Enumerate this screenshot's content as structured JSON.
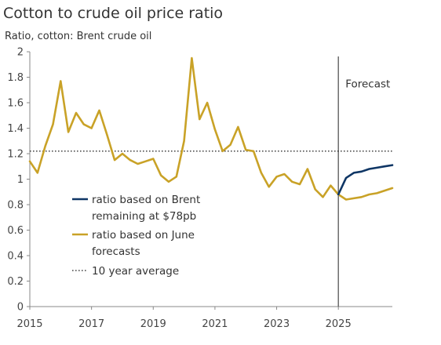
{
  "chart_data": {
    "type": "line",
    "title": "Cotton to crude oil price ratio",
    "subtitle": "Ratio, cotton: Brent crude oil",
    "ylim": [
      0,
      2
    ],
    "yticks": [
      0,
      0.2,
      0.4,
      0.6,
      0.8,
      1,
      1.2,
      1.4,
      1.6,
      1.8,
      2
    ],
    "ytick_labels": [
      "0",
      "0.2",
      "0.4",
      "0.6",
      "0.8",
      "1",
      "1.2",
      "1.4",
      "1.6",
      "1.8",
      "2"
    ],
    "xlim": [
      2015,
      2026.75
    ],
    "xticks": [
      2015,
      2017,
      2019,
      2021,
      2023,
      2025
    ],
    "xtick_labels": [
      "2015",
      "2017",
      "2019",
      "2021",
      "2023",
      "2025"
    ],
    "grid": false,
    "legend_position": "center-left",
    "colors": {
      "brent": "#0f3665",
      "june": "#c9a227",
      "average": "#222222",
      "divider": "#555555"
    },
    "annotations": [
      {
        "text": "Forecast",
        "x": 2025.25,
        "y": 1.75
      }
    ],
    "forecast_start": 2025,
    "average": {
      "name": "10 year average",
      "value": 1.22
    },
    "series": [
      {
        "name": "ratio based on Brent remaining at $78pb",
        "color": "#0f3665",
        "x": [
          2025.0,
          2025.25,
          2025.5,
          2025.75,
          2026.0,
          2026.25,
          2026.5,
          2026.75
        ],
        "y": [
          0.88,
          1.01,
          1.05,
          1.06,
          1.08,
          1.09,
          1.1,
          1.11
        ]
      },
      {
        "name": "ratio based on June forecasts",
        "color": "#c9a227",
        "x": [
          2015.0,
          2015.25,
          2015.5,
          2015.75,
          2016.0,
          2016.25,
          2016.5,
          2016.75,
          2017.0,
          2017.25,
          2017.5,
          2017.75,
          2018.0,
          2018.25,
          2018.5,
          2018.75,
          2019.0,
          2019.25,
          2019.5,
          2019.75,
          2020.0,
          2020.25,
          2020.5,
          2020.75,
          2021.0,
          2021.25,
          2021.5,
          2021.75,
          2022.0,
          2022.25,
          2022.5,
          2022.75,
          2023.0,
          2023.25,
          2023.5,
          2023.75,
          2024.0,
          2024.25,
          2024.5,
          2024.75,
          2025.0,
          2025.25,
          2025.5,
          2025.75,
          2026.0,
          2026.25,
          2026.5,
          2026.75
        ],
        "y": [
          1.14,
          1.05,
          1.26,
          1.43,
          1.77,
          1.37,
          1.52,
          1.43,
          1.4,
          1.54,
          1.35,
          1.15,
          1.2,
          1.15,
          1.12,
          1.14,
          1.16,
          1.03,
          0.98,
          1.02,
          1.3,
          1.95,
          1.47,
          1.6,
          1.39,
          1.22,
          1.27,
          1.41,
          1.23,
          1.22,
          1.05,
          0.94,
          1.02,
          1.04,
          0.98,
          0.96,
          1.08,
          0.92,
          0.86,
          0.95,
          0.88,
          0.84,
          0.85,
          0.86,
          0.88,
          0.89,
          0.91,
          0.93
        ]
      }
    ],
    "legend": [
      {
        "key": "brent",
        "lines": [
          "ratio based on Brent",
          "remaining at $78pb"
        ]
      },
      {
        "key": "june",
        "lines": [
          "ratio based on June",
          "forecasts"
        ]
      },
      {
        "key": "average",
        "lines": [
          "10 year average"
        ]
      }
    ]
  }
}
